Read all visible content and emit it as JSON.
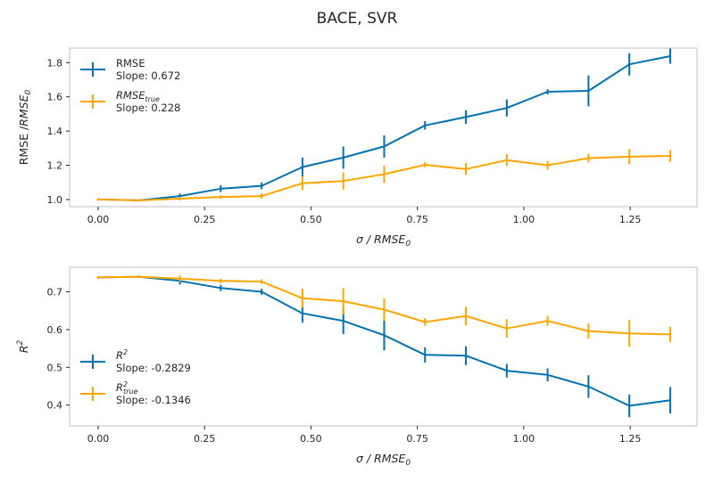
{
  "title": "BACE, SVR",
  "colors": {
    "blue": "#0072B2",
    "orange": "#FFA500",
    "axis": "#cccccc",
    "text": "#262626"
  },
  "chart_data": [
    {
      "type": "line",
      "xlabel_main": "σ / RMSE",
      "xlabel_sub": "0",
      "ylabel_main": "RMSE /",
      "ylabel_italic": "RMSE",
      "ylabel_sub": "0",
      "xlim": [
        -0.067,
        1.407
      ],
      "ylim": [
        0.958,
        1.885
      ],
      "xticks": [
        0.0,
        0.25,
        0.5,
        0.75,
        1.0,
        1.25
      ],
      "xtick_labels": [
        "0.00",
        "0.25",
        "0.50",
        "0.75",
        "1.00",
        "1.25"
      ],
      "yticks": [
        1.0,
        1.2,
        1.4,
        1.6,
        1.8
      ],
      "ytick_labels": [
        "1.0",
        "1.2",
        "1.4",
        "1.6",
        "1.8"
      ],
      "legend_position": "top-left",
      "x": [
        0.0,
        0.096,
        0.192,
        0.288,
        0.384,
        0.48,
        0.576,
        0.672,
        0.768,
        0.864,
        0.96,
        1.056,
        1.152,
        1.248,
        1.344
      ],
      "series": [
        {
          "name": "RMSE",
          "legend_main": "RMSE",
          "legend_sub": "",
          "slope_label": "Slope: 0.672",
          "color": "blue",
          "values": [
            1.0,
            0.995,
            1.02,
            1.063,
            1.08,
            1.19,
            1.245,
            1.31,
            1.433,
            1.482,
            1.535,
            1.63,
            1.635,
            1.79,
            1.838
          ],
          "errors": [
            0.005,
            0.005,
            0.015,
            0.02,
            0.02,
            0.055,
            0.065,
            0.065,
            0.025,
            0.04,
            0.05,
            0.015,
            0.09,
            0.065,
            0.045
          ]
        },
        {
          "name": "RMSE_true",
          "legend_main": "RMSE",
          "legend_sub": "true",
          "slope_label": "Slope: 0.228",
          "color": "orange",
          "values": [
            1.0,
            0.995,
            1.005,
            1.015,
            1.02,
            1.095,
            1.108,
            1.148,
            1.203,
            1.178,
            1.23,
            1.2,
            1.242,
            1.25,
            1.255
          ],
          "errors": [
            0.005,
            0.005,
            0.01,
            0.01,
            0.015,
            0.04,
            0.05,
            0.05,
            0.015,
            0.035,
            0.035,
            0.025,
            0.025,
            0.045,
            0.035
          ]
        }
      ]
    },
    {
      "type": "line",
      "xlabel_main": "σ / RMSE",
      "xlabel_sub": "0",
      "ylabel_main": "R",
      "ylabel_sup": "2",
      "xlim": [
        -0.067,
        1.407
      ],
      "ylim": [
        0.345,
        0.765
      ],
      "xticks": [
        0.0,
        0.25,
        0.5,
        0.75,
        1.0,
        1.25
      ],
      "xtick_labels": [
        "0.00",
        "0.25",
        "0.50",
        "0.75",
        "1.00",
        "1.25"
      ],
      "yticks": [
        0.4,
        0.5,
        0.6,
        0.7
      ],
      "ytick_labels": [
        "0.4",
        "0.5",
        "0.6",
        "0.7"
      ],
      "legend_position": "bottom-left",
      "x": [
        0.0,
        0.096,
        0.192,
        0.288,
        0.384,
        0.48,
        0.576,
        0.672,
        0.768,
        0.864,
        0.96,
        1.056,
        1.152,
        1.248,
        1.344
      ],
      "series": [
        {
          "name": "R^2",
          "legend_main": "R",
          "legend_sup": "2",
          "legend_sub": "",
          "slope_label": "Slope: -0.2829",
          "color": "blue",
          "values": [
            0.738,
            0.74,
            0.729,
            0.71,
            0.7,
            0.643,
            0.623,
            0.585,
            0.533,
            0.531,
            0.491,
            0.48,
            0.449,
            0.398,
            0.413
          ],
          "errors": [
            0.003,
            0.003,
            0.01,
            0.008,
            0.008,
            0.025,
            0.035,
            0.04,
            0.02,
            0.025,
            0.018,
            0.017,
            0.03,
            0.03,
            0.035
          ]
        },
        {
          "name": "R^2_true",
          "legend_main": "R",
          "legend_sup": "2",
          "legend_sub": "true",
          "slope_label": "Slope: -0.1346",
          "color": "orange",
          "values": [
            0.738,
            0.74,
            0.735,
            0.729,
            0.727,
            0.683,
            0.675,
            0.653,
            0.62,
            0.636,
            0.603,
            0.623,
            0.596,
            0.59,
            0.587
          ],
          "errors": [
            0.003,
            0.003,
            0.008,
            0.006,
            0.006,
            0.025,
            0.035,
            0.03,
            0.01,
            0.025,
            0.025,
            0.013,
            0.02,
            0.035,
            0.02
          ]
        }
      ]
    }
  ]
}
